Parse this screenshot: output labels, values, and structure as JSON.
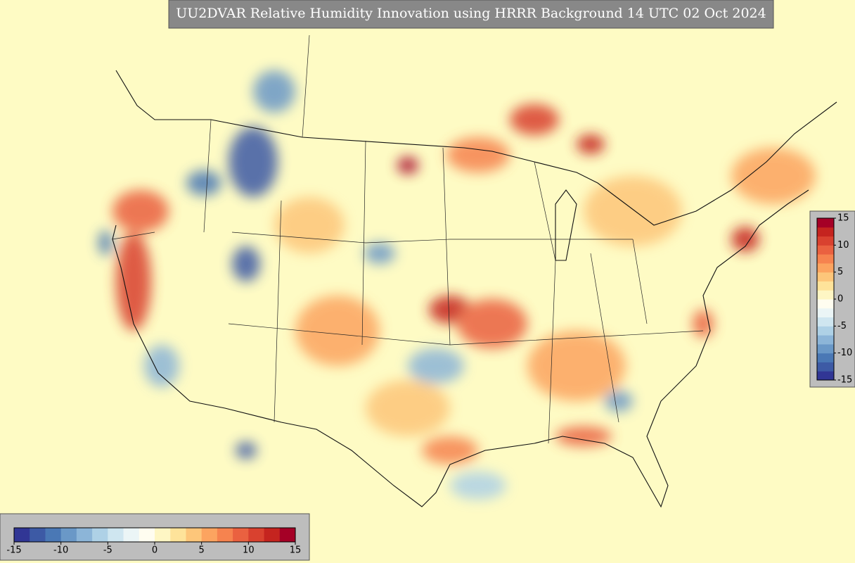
{
  "map": {
    "title": "UU2DVAR Relative Humidity Innovation using HRRR Background 14 UTC 02 Oct 2024",
    "colorbar": {
      "lim": [
        -15,
        15
      ],
      "ticks": [
        -15,
        -10,
        -5,
        0,
        5,
        10,
        15
      ],
      "colors": [
        "#313695",
        "#3d5aa5",
        "#4a78b5",
        "#6a98c7",
        "#8cb5d8",
        "#aed1e6",
        "#cfe6f0",
        "#ebf5f6",
        "#fffdf0",
        "#fef6c4",
        "#fee39a",
        "#fdc67a",
        "#fca460",
        "#f6834f",
        "#ea6140",
        "#d9412f",
        "#c5241f",
        "#a50026"
      ]
    }
  }
}
